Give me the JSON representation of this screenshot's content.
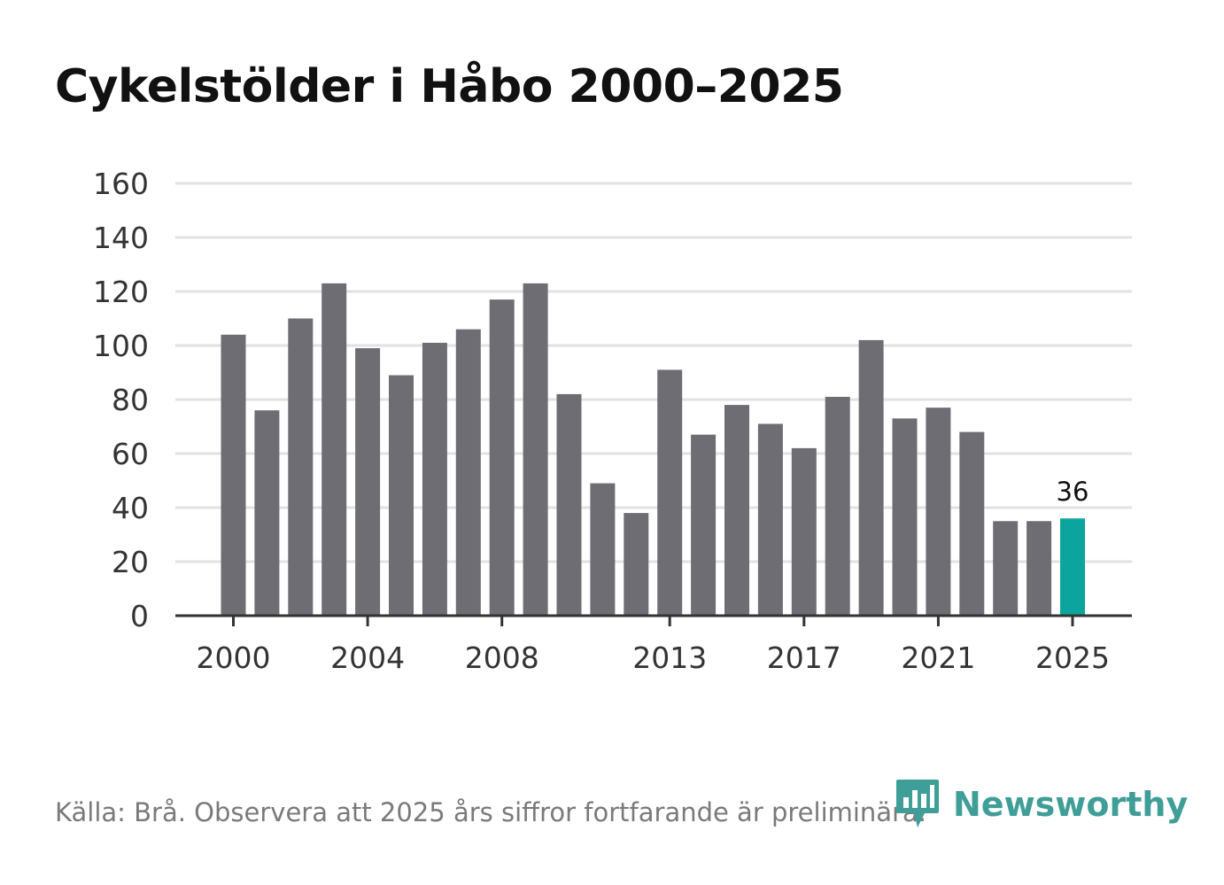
{
  "title": "Cykelstölder i Håbo 2000–2025",
  "source": "Källa: Brå. Observera att 2025 års siffror fortfarande är preliminära.",
  "brand": {
    "name": "Newsworthy",
    "icon": "bar-chart-badge-icon"
  },
  "colors": {
    "bar": "#6e6d73",
    "highlight": "#0ca59e",
    "grid": "#e2e2e2",
    "axis": "#333333",
    "brand": "#3f9e98"
  },
  "chart_data": {
    "type": "bar",
    "title": "Cykelstölder i Håbo 2000–2025",
    "xlabel": "",
    "ylabel": "",
    "ylim": [
      0,
      160
    ],
    "yticks": [
      0,
      20,
      40,
      60,
      80,
      100,
      120,
      140,
      160
    ],
    "xticks": [
      "2000",
      "2004",
      "2008",
      "2013",
      "2017",
      "2021",
      "2025"
    ],
    "categories": [
      "2000",
      "2001",
      "2002",
      "2003",
      "2004",
      "2005",
      "2006",
      "2007",
      "2008",
      "2009",
      "2010",
      "2011",
      "2012",
      "2013",
      "2014",
      "2015",
      "2016",
      "2017",
      "2018",
      "2019",
      "2020",
      "2021",
      "2022",
      "2023",
      "2024",
      "2025"
    ],
    "values": [
      104,
      76,
      110,
      123,
      99,
      89,
      101,
      106,
      117,
      123,
      82,
      49,
      38,
      91,
      67,
      78,
      71,
      62,
      81,
      102,
      73,
      77,
      68,
      35,
      35,
      36
    ],
    "highlight": "2025",
    "annotations": [
      {
        "category": "2025",
        "text": "36"
      }
    ],
    "grid": true
  }
}
